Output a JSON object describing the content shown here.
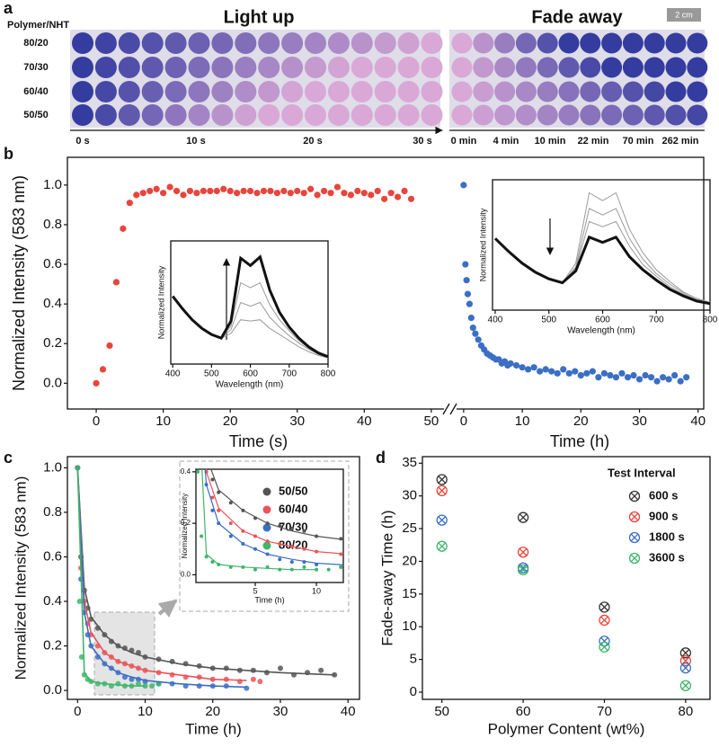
{
  "panel_labels": [
    "a",
    "b",
    "c",
    "d"
  ],
  "panel_a": {
    "y_header": "Polymer/NHT",
    "rows": [
      "80/20",
      "70/30",
      "60/40",
      "50/50"
    ],
    "light_title": "Light up",
    "fade_title": "Fade away",
    "scale_bar": "2 cm",
    "light_ticks": [
      "0 s",
      "10 s",
      "20 s",
      "30 s"
    ],
    "fade_ticks": [
      "0 min",
      "4 min",
      "10 min",
      "22 min",
      "70 min",
      "262 min"
    ]
  },
  "chart_data": [
    {
      "type": "scatter",
      "xlabel": "Time (s)",
      "ylabel": "Normalized Intensity (583 nm)",
      "color": "#e8453c",
      "x": [
        0,
        1,
        2,
        3,
        4,
        5,
        6,
        7,
        8,
        9,
        10,
        11,
        12,
        13,
        14,
        15,
        16,
        17,
        18,
        19,
        20,
        21,
        22,
        23,
        24,
        25,
        26,
        27,
        28,
        29,
        30,
        31,
        32,
        33,
        34,
        35,
        36,
        37,
        38,
        39,
        40,
        41,
        42,
        43,
        44,
        45,
        46,
        47
      ],
      "values": [
        0,
        0.07,
        0.19,
        0.51,
        0.78,
        0.91,
        0.95,
        0.96,
        0.97,
        0.98,
        0.96,
        0.99,
        0.97,
        0.95,
        0.97,
        0.96,
        0.97,
        0.97,
        0.97,
        0.98,
        0.97,
        0.96,
        0.97,
        0.97,
        0.96,
        0.97,
        0.97,
        0.96,
        0.97,
        0.96,
        0.97,
        0.96,
        0.98,
        0.95,
        0.97,
        0.96,
        0.99,
        0.96,
        0.95,
        0.97,
        0.96,
        0.95,
        0.97,
        0.93,
        0.96,
        0.94,
        0.97,
        0.93
      ],
      "xlim": [
        -4.3,
        52.7
      ],
      "ylim": [
        -0.13,
        1.14
      ],
      "xticks": [
        0,
        10,
        20,
        30,
        40,
        50
      ],
      "yticks": [
        {
          "value": 0,
          "label": "0.0"
        },
        0.2,
        0.4,
        0.6,
        0.8,
        {
          "value": 1,
          "label": "1.0"
        }
      ]
    },
    {
      "type": "scatter",
      "xlabel": "Time (h)",
      "color": "#3b6fc4",
      "x": [
        0,
        0.3,
        0.5,
        0.7,
        1,
        1.3,
        1.6,
        2,
        2.5,
        3,
        3.5,
        4,
        4.5,
        5,
        5.5,
        6,
        6.5,
        7,
        7.5,
        8,
        9,
        10,
        11,
        12,
        13,
        14,
        15,
        16,
        17,
        18,
        19,
        20,
        21,
        22,
        23,
        24,
        25,
        26,
        27,
        28,
        29,
        30,
        31,
        32,
        33,
        34,
        35,
        36,
        37,
        38
      ],
      "values": [
        1.0,
        0.6,
        0.52,
        0.45,
        0.4,
        0.33,
        0.28,
        0.25,
        0.22,
        0.19,
        0.17,
        0.15,
        0.14,
        0.13,
        0.12,
        0.12,
        0.1,
        0.11,
        0.09,
        0.1,
        0.09,
        0.08,
        0.07,
        0.08,
        0.06,
        0.07,
        0.06,
        0.05,
        0.07,
        0.05,
        0.06,
        0.04,
        0.05,
        0.06,
        0.03,
        0.05,
        0.04,
        0.03,
        0.05,
        0.03,
        0.04,
        0.02,
        0.04,
        0.03,
        0.01,
        0.03,
        0.02,
        0.04,
        0.01,
        0.03
      ],
      "xlim": [
        -0.9,
        40.5
      ],
      "xticks": [
        0,
        10,
        20,
        30,
        40
      ]
    },
    {
      "type": "line",
      "xlabel": "Wavelength (nm)",
      "ylabel": "Normalized Intensity",
      "x": [
        400,
        425,
        450,
        475,
        500,
        525,
        550,
        575,
        600,
        625,
        650,
        675,
        700,
        725,
        750,
        775,
        800
      ],
      "series": [
        {
          "color": "#9a9a9a",
          "values": [
            0.55,
            0.45,
            0.36,
            0.29,
            0.24,
            0.21,
            0.25,
            0.36,
            0.35,
            0.36,
            0.29,
            0.24,
            0.19,
            0.14,
            0.1,
            0.07,
            0.05
          ]
        },
        {
          "color": "#9a9a9a",
          "values": [
            0.55,
            0.45,
            0.36,
            0.29,
            0.24,
            0.21,
            0.28,
            0.5,
            0.47,
            0.5,
            0.38,
            0.3,
            0.23,
            0.17,
            0.12,
            0.08,
            0.05
          ]
        },
        {
          "color": "#9a9a9a",
          "values": [
            0.55,
            0.45,
            0.36,
            0.29,
            0.24,
            0.21,
            0.31,
            0.66,
            0.62,
            0.66,
            0.48,
            0.36,
            0.27,
            0.19,
            0.13,
            0.08,
            0.06
          ]
        },
        {
          "color": "#111111",
          "values": [
            0.55,
            0.45,
            0.36,
            0.29,
            0.24,
            0.21,
            0.35,
            0.86,
            0.8,
            0.87,
            0.6,
            0.42,
            0.3,
            0.21,
            0.14,
            0.09,
            0.06
          ]
        }
      ],
      "xlim": [
        395,
        800
      ],
      "ylim": [
        0,
        1
      ],
      "xticks": [
        400,
        500,
        600,
        700,
        800
      ]
    },
    {
      "type": "line",
      "xlabel": "Wavelength (nm)",
      "ylabel": "Normalized Intensity",
      "x": [
        400,
        425,
        450,
        475,
        500,
        525,
        550,
        575,
        600,
        625,
        650,
        675,
        700,
        725,
        750,
        775,
        800
      ],
      "series": [
        {
          "color": "#9a9a9a",
          "values": [
            0.55,
            0.45,
            0.36,
            0.29,
            0.24,
            0.21,
            0.36,
            0.9,
            0.84,
            0.9,
            0.62,
            0.44,
            0.31,
            0.22,
            0.14,
            0.09,
            0.06
          ]
        },
        {
          "color": "#9a9a9a",
          "values": [
            0.55,
            0.45,
            0.36,
            0.29,
            0.24,
            0.21,
            0.33,
            0.78,
            0.73,
            0.78,
            0.55,
            0.39,
            0.28,
            0.2,
            0.13,
            0.08,
            0.06
          ]
        },
        {
          "color": "#9a9a9a",
          "values": [
            0.55,
            0.45,
            0.36,
            0.29,
            0.24,
            0.21,
            0.32,
            0.68,
            0.64,
            0.68,
            0.49,
            0.35,
            0.26,
            0.18,
            0.12,
            0.08,
            0.05
          ]
        },
        {
          "color": "#111111",
          "values": [
            0.55,
            0.45,
            0.36,
            0.29,
            0.24,
            0.21,
            0.3,
            0.56,
            0.52,
            0.56,
            0.41,
            0.31,
            0.23,
            0.16,
            0.11,
            0.07,
            0.05
          ]
        }
      ],
      "xlim": [
        395,
        800
      ],
      "ylim": [
        0,
        1
      ],
      "xticks": [
        400,
        500,
        600,
        700,
        800
      ]
    },
    {
      "type": "scatter",
      "xlabel": "Time (h)",
      "ylabel": "Normalized Intensity (583 nm)",
      "legend": "upper right",
      "fit_x": [
        0,
        1,
        2,
        4,
        6,
        8,
        10,
        15,
        20,
        25,
        30,
        38
      ],
      "series": [
        {
          "name": "50/50",
          "color": "#555555",
          "x": [
            0,
            0.5,
            1,
            1.5,
            2,
            3,
            4,
            5,
            6,
            7,
            8,
            9,
            10,
            12,
            14,
            16,
            18,
            20,
            22,
            24,
            26,
            28,
            30,
            32,
            34,
            36,
            38
          ],
          "values": [
            1.0,
            0.6,
            0.45,
            0.37,
            0.32,
            0.28,
            0.25,
            0.22,
            0.2,
            0.19,
            0.18,
            0.17,
            0.15,
            0.14,
            0.13,
            0.12,
            0.11,
            0.1,
            0.1,
            0.09,
            0.09,
            0.08,
            0.1,
            0.07,
            0.08,
            0.09,
            0.07
          ],
          "fit": [
            1.0,
            0.46,
            0.33,
            0.25,
            0.2,
            0.17,
            0.15,
            0.12,
            0.1,
            0.09,
            0.08,
            0.07
          ]
        },
        {
          "name": "60/40",
          "color": "#e8555a",
          "x": [
            0,
            0.5,
            1,
            1.5,
            2,
            3,
            4,
            5,
            6,
            7,
            8,
            9,
            10,
            12,
            14,
            16,
            18,
            20,
            22,
            24,
            26,
            27
          ],
          "values": [
            1.0,
            0.55,
            0.4,
            0.3,
            0.25,
            0.2,
            0.17,
            0.15,
            0.13,
            0.12,
            0.11,
            0.1,
            0.09,
            0.08,
            0.07,
            0.06,
            0.06,
            0.05,
            0.05,
            0.04,
            0.05,
            0.04
          ],
          "fit": [
            1.0,
            0.4,
            0.26,
            0.17,
            0.13,
            0.11,
            0.09,
            0.07,
            0.05,
            0.045,
            null,
            null
          ]
        },
        {
          "name": "70/30",
          "color": "#3b6fc4",
          "x": [
            0,
            0.5,
            1,
            1.5,
            2,
            3,
            4,
            5,
            6,
            7,
            8,
            9,
            10,
            12,
            14,
            16,
            18,
            20,
            22,
            25
          ],
          "values": [
            1.0,
            0.5,
            0.35,
            0.25,
            0.2,
            0.15,
            0.12,
            0.1,
            0.08,
            0.06,
            0.05,
            0.05,
            0.04,
            0.03,
            0.03,
            0.02,
            0.02,
            0.02,
            0.02,
            0.01
          ],
          "fit": [
            1.0,
            0.35,
            0.2,
            0.12,
            0.08,
            0.06,
            0.045,
            0.03,
            0.02,
            0.015,
            null,
            null
          ]
        },
        {
          "name": "80/20",
          "color": "#3fb56a",
          "x": [
            0,
            0.3,
            0.6,
            1,
            1.5,
            2,
            3,
            4,
            5,
            6,
            7,
            8,
            9,
            10,
            11,
            12
          ],
          "values": [
            1.0,
            0.4,
            0.15,
            0.07,
            0.05,
            0.04,
            0.03,
            0.03,
            0.02,
            0.03,
            0.02,
            0.02,
            0.03,
            0.02,
            0.02,
            0.03
          ],
          "fit": [
            1.0,
            0.08,
            0.04,
            0.03,
            0.025,
            0.02,
            0.02,
            null,
            null,
            null,
            null,
            null
          ]
        }
      ],
      "xlim": [
        -1.5,
        41.7
      ],
      "ylim": [
        -0.04,
        1.05
      ],
      "xticks": [
        0,
        10,
        20,
        30,
        40
      ],
      "yticks": [
        {
          "value": 0,
          "label": "0.0"
        },
        0.2,
        0.4,
        0.6,
        0.8,
        {
          "value": 1,
          "label": "1.0"
        }
      ]
    },
    {
      "type": "scatter",
      "xlabel": "Time (h)",
      "ylabel": "Normalized Intensity",
      "xlim": [
        0.15,
        12.2
      ],
      "ylim": [
        -0.03,
        0.41
      ],
      "xticks": [
        5,
        10
      ],
      "yticks": [
        {
          "value": 0,
          "label": "0.0"
        },
        0.2,
        0.4
      ]
    },
    {
      "type": "scatter",
      "marker": "circle-x",
      "xlabel": "Polymer Content (wt%)",
      "ylabel": "Fade-away Time (h)",
      "legend_title": "Test Interval",
      "x": [
        50,
        60,
        70,
        80
      ],
      "series": [
        {
          "name": "600 s",
          "color": "#333333",
          "values": [
            32.5,
            26.7,
            13,
            6
          ]
        },
        {
          "name": "900 s",
          "color": "#e8453c",
          "values": [
            30.8,
            21.4,
            11,
            4.8
          ]
        },
        {
          "name": "1800 s",
          "color": "#3b6fc4",
          "values": [
            26.3,
            19,
            7.8,
            3.7
          ]
        },
        {
          "name": "3600 s",
          "color": "#3fb56a",
          "values": [
            22.3,
            18.7,
            6.9,
            1
          ]
        }
      ],
      "xlim": [
        47.6,
        83
      ],
      "ylim": [
        -1.1,
        36
      ],
      "xticks": [
        50,
        60,
        70,
        80
      ],
      "yticks": [
        0,
        5,
        10,
        15,
        20,
        25,
        30,
        35
      ]
    }
  ]
}
